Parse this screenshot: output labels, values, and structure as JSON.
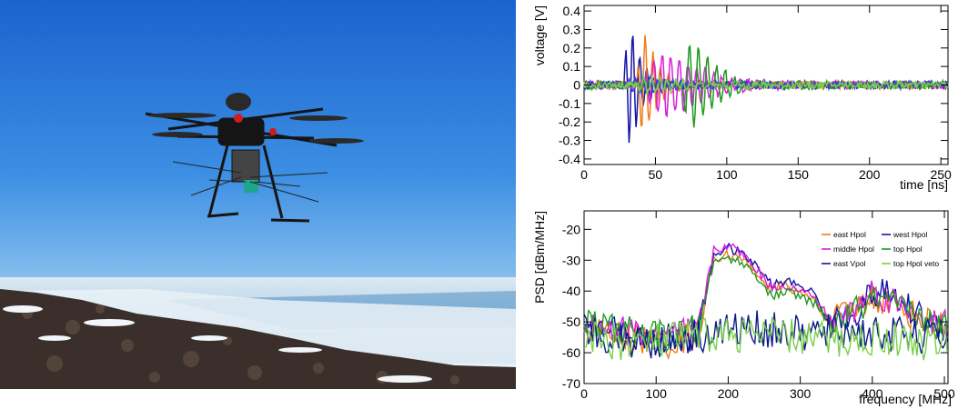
{
  "photo": {
    "subject": "hexacopter drone carrying antenna payload flying over snowy rocky ridge",
    "colors": {
      "sky_top": "#1f6fd6",
      "sky_horizon": "#cfe6f7",
      "rock": "#3a2f2a",
      "snow": "#eef3f7"
    }
  },
  "chart_data": [
    {
      "type": "line",
      "id": "voltage",
      "xlabel": "time [ns]",
      "ylabel": "voltage [V]",
      "xlim": [
        0,
        255
      ],
      "ylim": [
        -0.43,
        0.43
      ],
      "xticks": [
        "0",
        "50",
        "100",
        "150",
        "200",
        "250"
      ],
      "yticks": [
        "-0.4",
        "-0.3",
        "-0.2",
        "-0.1",
        "0",
        "0.1",
        "0.2",
        "0.3",
        "0.4"
      ],
      "series": [
        {
          "color": "#1515a8",
          "t0": 28,
          "period": 5.0,
          "amp": 0.43,
          "decay": 8,
          "rise": 3,
          "phase": 0.2,
          "noise": 0.022
        },
        {
          "color": "#f07b18",
          "t0": 37,
          "period": 5.4,
          "amp": 0.39,
          "decay": 9,
          "rise": 4,
          "phase": 1.1,
          "noise": 0.022
        },
        {
          "color": "#d91ed9",
          "t0": 42,
          "period": 6.0,
          "amp": 0.39,
          "decay": 22,
          "rise": 20,
          "phase": 0.7,
          "noise": 0.02
        },
        {
          "color": "#1e9a1e",
          "t0": 68,
          "period": 6.3,
          "amp": 0.37,
          "decay": 14,
          "rise": 8,
          "phase": 2.0,
          "noise": 0.022
        },
        {
          "color": "#3a3ae0",
          "t0": 30,
          "period": 5.2,
          "amp": 0.05,
          "decay": 20,
          "rise": 5,
          "phase": 0.5,
          "noise": 0.02
        },
        {
          "color": "#7ad04a",
          "t0": 36,
          "period": 5.6,
          "amp": 0.05,
          "decay": 20,
          "rise": 5,
          "phase": 1.5,
          "noise": 0.02
        }
      ]
    },
    {
      "type": "line",
      "id": "psd",
      "xlabel": "frequency [MHz]",
      "ylabel": "PSD [dBm/MHz]",
      "xlim": [
        0,
        505
      ],
      "ylim": [
        -70,
        -14
      ],
      "xticks": [
        "0",
        "100",
        "200",
        "300",
        "400",
        "500"
      ],
      "yticks": [
        "-70",
        "-60",
        "-50",
        "-40",
        "-30",
        "-20"
      ],
      "legend": {
        "placement": "top-right",
        "entries": [
          "east Hpol",
          "west Hpol",
          "middle Hpol",
          "top Hpol",
          "east Vpol",
          "top Hpol veto"
        ]
      },
      "series": [
        {
          "name": "east Hpol",
          "color": "#f07b18",
          "x": [
            0,
            60,
            120,
            160,
            170,
            180,
            200,
            220,
            240,
            260,
            280,
            300,
            320,
            340,
            360,
            380,
            400,
            420,
            440,
            460,
            480,
            500
          ],
          "y": [
            -52,
            -55,
            -57,
            -54,
            -40,
            -30,
            -28,
            -30,
            -34,
            -40,
            -38,
            -41,
            -43,
            -50,
            -48,
            -45,
            -42,
            -43,
            -46,
            -48,
            -50,
            -52
          ],
          "noise": 5
        },
        {
          "name": "west Hpol",
          "color": "#1515a8",
          "x": [
            0,
            60,
            120,
            160,
            170,
            180,
            200,
            220,
            240,
            260,
            280,
            300,
            320,
            340,
            360,
            380,
            400,
            420,
            440,
            460,
            480,
            500
          ],
          "y": [
            -52,
            -54,
            -56,
            -54,
            -40,
            -28,
            -26,
            -28,
            -32,
            -38,
            -37,
            -38,
            -41,
            -50,
            -49,
            -46,
            -41,
            -41,
            -44,
            -47,
            -50,
            -52
          ],
          "noise": 5
        },
        {
          "name": "middle Hpol",
          "color": "#d91ed9",
          "x": [
            0,
            60,
            120,
            160,
            170,
            180,
            200,
            220,
            240,
            260,
            280,
            300,
            320,
            340,
            360,
            380,
            400,
            420,
            440,
            460,
            480,
            500
          ],
          "y": [
            -50,
            -53,
            -55,
            -52,
            -38,
            -27,
            -25,
            -28,
            -33,
            -39,
            -38,
            -40,
            -42,
            -49,
            -48,
            -45,
            -40,
            -42,
            -45,
            -47,
            -50,
            -51
          ],
          "noise": 5
        },
        {
          "name": "top Hpol",
          "color": "#1e9a1e",
          "x": [
            0,
            60,
            120,
            160,
            170,
            180,
            200,
            220,
            240,
            260,
            280,
            300,
            320,
            340,
            360,
            380,
            400,
            420,
            440,
            460,
            480,
            500
          ],
          "y": [
            -50,
            -53,
            -55,
            -52,
            -40,
            -31,
            -29,
            -31,
            -35,
            -42,
            -40,
            -42,
            -44,
            -50,
            -49,
            -46,
            -43,
            -44,
            -46,
            -48,
            -50,
            -52
          ],
          "noise": 5
        },
        {
          "name": "east Vpol",
          "color": "#0d1a8a",
          "x": [
            0,
            60,
            120,
            180,
            240,
            300,
            360,
            420,
            480,
            505
          ],
          "y": [
            -52,
            -56,
            -56,
            -53,
            -52,
            -54,
            -53,
            -54,
            -55,
            -55
          ],
          "noise": 6
        },
        {
          "name": "top Hpol veto",
          "color": "#7ad04a",
          "x": [
            0,
            60,
            120,
            180,
            240,
            300,
            360,
            420,
            480,
            505
          ],
          "y": [
            -55,
            -57,
            -56,
            -54,
            -54,
            -55,
            -56,
            -55,
            -57,
            -57
          ],
          "noise": 6
        }
      ]
    }
  ]
}
